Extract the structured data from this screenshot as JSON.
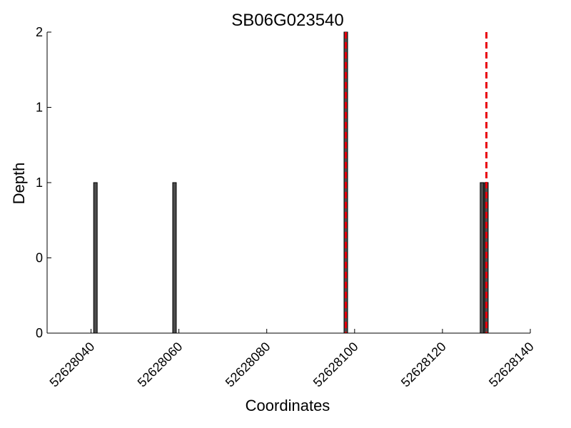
{
  "chart_data": {
    "type": "bar",
    "title": "SB06G023540",
    "xlabel": "Coordinates",
    "ylabel": "Depth",
    "xlim": [
      52628030,
      52628140
    ],
    "ylim": [
      0,
      2
    ],
    "x_ticks": [
      {
        "value": 52628040,
        "label": "52628040"
      },
      {
        "value": 52628060,
        "label": "52628060"
      },
      {
        "value": 52628080,
        "label": "52628080"
      },
      {
        "value": 52628100,
        "label": "52628100"
      },
      {
        "value": 52628120,
        "label": "52628120"
      },
      {
        "value": 52628140,
        "label": "52628140"
      }
    ],
    "y_ticks": [
      {
        "value": 0,
        "label": "0"
      },
      {
        "value": 0.5,
        "label": "0"
      },
      {
        "value": 1,
        "label": "1"
      },
      {
        "value": 1.5,
        "label": "1"
      },
      {
        "value": 2,
        "label": "2"
      }
    ],
    "bars": [
      {
        "x": 52628041,
        "value": 1
      },
      {
        "x": 52628059,
        "value": 1
      },
      {
        "x": 52628098,
        "value": 2
      },
      {
        "x": 52628129,
        "value": 1
      },
      {
        "x": 52628130,
        "value": 1
      }
    ],
    "markers": [
      {
        "x": 52628098
      },
      {
        "x": 52628130
      }
    ],
    "bar_color": "#4d4d4d",
    "bar_edge_color": "#000000",
    "marker_color": "#e8000b",
    "grid": false
  }
}
